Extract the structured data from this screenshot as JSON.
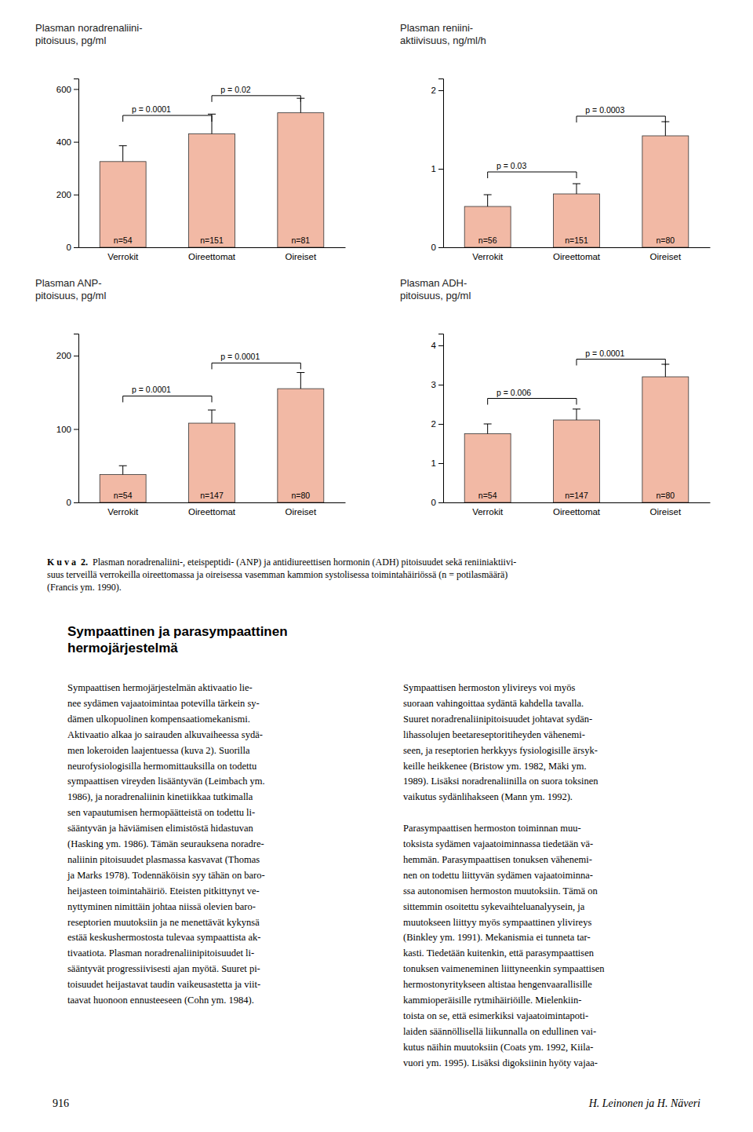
{
  "chart_data": [
    {
      "type": "bar",
      "title": "Plasman noradrenaliini-\npitoisuus, pg/ml",
      "categories": [
        "Verrokit",
        "Oireettomat",
        "Oireiset"
      ],
      "values": [
        325,
        430,
        510
      ],
      "errors": [
        60,
        75,
        55
      ],
      "n_labels": [
        "n=54",
        "n=151",
        "n=81"
      ],
      "color": "#F2B9A5",
      "ylim": [
        0,
        640
      ],
      "yticks": [
        0,
        200,
        400,
        600
      ],
      "grid": false,
      "annotations": [
        {
          "text": "p = 0.0001",
          "from": "Verrokit",
          "to": "Oireettomat",
          "y": 500
        },
        {
          "text": "p = 0.02",
          "from": "Oireettomat",
          "to": "Oireiset",
          "y": 575
        }
      ]
    },
    {
      "type": "bar",
      "title": "Plasman reniini-\naktiivisuus, ng/ml/h",
      "categories": [
        "Verrokit",
        "Oireettomat",
        "Oireiset"
      ],
      "values": [
        0.52,
        0.68,
        1.42
      ],
      "errors": [
        0.15,
        0.13,
        0.18
      ],
      "n_labels": [
        "n=56",
        "n=151",
        "n=80"
      ],
      "color": "#F2B9A5",
      "ylim": [
        0,
        2.15
      ],
      "yticks": [
        0,
        1,
        2
      ],
      "grid": false,
      "annotations": [
        {
          "text": "p = 0.03",
          "from": "Verrokit",
          "to": "Oireettomat",
          "y": 0.96
        },
        {
          "text": "p = 0.0003",
          "from": "Oireettomat",
          "to": "Oireiset",
          "y": 1.67
        }
      ]
    },
    {
      "type": "bar",
      "title": "Plasman ANP-\npitoisuus, pg/ml",
      "categories": [
        "Verrokit",
        "Oireettomat",
        "Oireiset"
      ],
      "values": [
        38,
        108,
        155
      ],
      "errors": [
        12,
        18,
        22
      ],
      "n_labels": [
        "n=54",
        "n=147",
        "n=80"
      ],
      "color": "#F2B9A5",
      "ylim": [
        0,
        230
      ],
      "yticks": [
        0,
        100,
        200
      ],
      "grid": false,
      "annotations": [
        {
          "text": "p = 0.0001",
          "from": "Verrokit",
          "to": "Oireettomat",
          "y": 145
        },
        {
          "text": "p = 0.0001",
          "from": "Oireettomat",
          "to": "Oireiset",
          "y": 190
        }
      ]
    },
    {
      "type": "bar",
      "title": "Plasman ADH-\npitoisuus, pg/ml",
      "categories": [
        "Verrokit",
        "Oireettomat",
        "Oireiset"
      ],
      "values": [
        1.75,
        2.1,
        3.2
      ],
      "errors": [
        0.25,
        0.28,
        0.32
      ],
      "n_labels": [
        "n=54",
        "n=147",
        "n=80"
      ],
      "color": "#F2B9A5",
      "ylim": [
        0,
        4.3
      ],
      "yticks": [
        0,
        1,
        2,
        3,
        4
      ],
      "grid": false,
      "annotations": [
        {
          "text": "p = 0.006",
          "from": "Verrokit",
          "to": "Oireettomat",
          "y": 2.65
        },
        {
          "text": "p = 0.0001",
          "from": "Oireettomat",
          "to": "Oireiset",
          "y": 3.65
        }
      ]
    }
  ],
  "caption_bold": "K u v a  2.",
  "caption": "  Plasman noradrenaliini-, eteispeptidi- (ANP) ja antidiureettisen hormonin (ADH) pitoisuudet sekä reniiniaktiivi-\nsuus terveillä verrokeilla oireettomassa ja oireisessa vasemman kammion systolisessa toimintahäiriössä (n = potilasmäärä)\n(Francis ym. 1990).",
  "section_title": "Sympaattinen ja parasympaattinen\nhermojärjestelmä",
  "body_left_lines": [
    "Sympaattisen hermojärjestelmän aktivaatio lie-",
    "nee sydämen vajaatoimintaa potevilla tärkein sy-",
    "dämen ulkopuolinen kompensaatiomekanismi.",
    "Aktivaatio alkaa jo sairauden alkuvaiheessa sydä-",
    "men lokeroiden laajentuessa (kuva 2). Suorilla",
    "neurofysiologisilla hermomittauksilla on todettu",
    "sympaattisen vireyden lisääntyvän (Leimbach ym.",
    "1986), ja noradrenaliinin kinetiikkaa tutkimalla",
    "sen vapautumisen hermopäätteistä on todettu li-",
    "sääntyvän ja häviämisen elimistöstä hidastuvan",
    "(Hasking ym. 1986). Tämän seurauksena noradre-",
    "naliinin pitoisuudet plasmassa kasvavat (Thomas",
    "ja Marks 1978). Todennäköisin syy tähän on baro-",
    "heijasteen toimintahäiriö. Eteisten pitkittynyt ve-",
    "nyttyminen nimittäin johtaa niissä olevien baro-",
    "reseptorien muutoksiin ja ne menettävät kykynsä",
    "estää keskushermostosta tulevaa sympaattista ak-",
    "tivaatiota. Plasman noradrenaliinipitoisuudet li-",
    "sääntyvät progressiivisesti ajan myötä. Suuret pi-",
    "toisuudet heijastavat taudin vaikeusastetta ja viit-",
    "taavat huonoon ennusteeseen (Cohn ym. 1984)."
  ],
  "body_right_paragraphs": [
    [
      "Sympaattisen hermoston ylivireys voi myös",
      "suoraan vahingoittaa sydäntä kahdella tavalla.",
      "Suuret noradrenaliinipitoisuudet johtavat sydän-",
      "lihassolujen beetareseptoritiheyden vähenemi-",
      "seen, ja reseptorien herkkyys fysiologisille ärsyk-",
      "keille heikkenee (Bristow ym. 1982, Mäki ym.",
      "1989). Lisäksi noradrenaliinilla on suora toksinen",
      "vaikutus sydänlihakseen (Mann ym. 1992)."
    ],
    [
      "Parasympaattisen hermoston toiminnan muu-",
      "toksista sydämen vajaatoiminnassa tiedetään vä-",
      "hemmän. Parasympaattisen tonuksen vähenemi-",
      "nen on todettu liittyvän sydämen vajaatoiminna-",
      "ssa autonomisen hermoston muutoksiin. Tämä on",
      "sittemmin osoitettu sykevaihteluanalyysein, ja",
      "muutokseen liittyy myös sympaattinen ylivireys",
      "(Binkley ym. 1991). Mekanismia ei tunneta tar-",
      "kasti. Tiedetään kuitenkin, että parasympaattisen",
      "tonuksen vaimeneminen liittyneenkin sympaattisen",
      "hermostonyritykseen altistaa hengenvaarallisille",
      "kammioperäisille rytmihäiriöille. Mielenkiin-",
      "toista on se, että esimerkiksi vajaatoimintapoti-",
      "laiden säännöllisellä liikunnalla on edullinen vai-",
      "kutus näihin muutoksiin (Coats ym. 1992, Kiila-",
      "vuori ym. 1995). Lisäksi digoksiinin hyöty vajaa-"
    ]
  ],
  "page_number": "916",
  "author": "H. Leinonen ja H. Näveri"
}
